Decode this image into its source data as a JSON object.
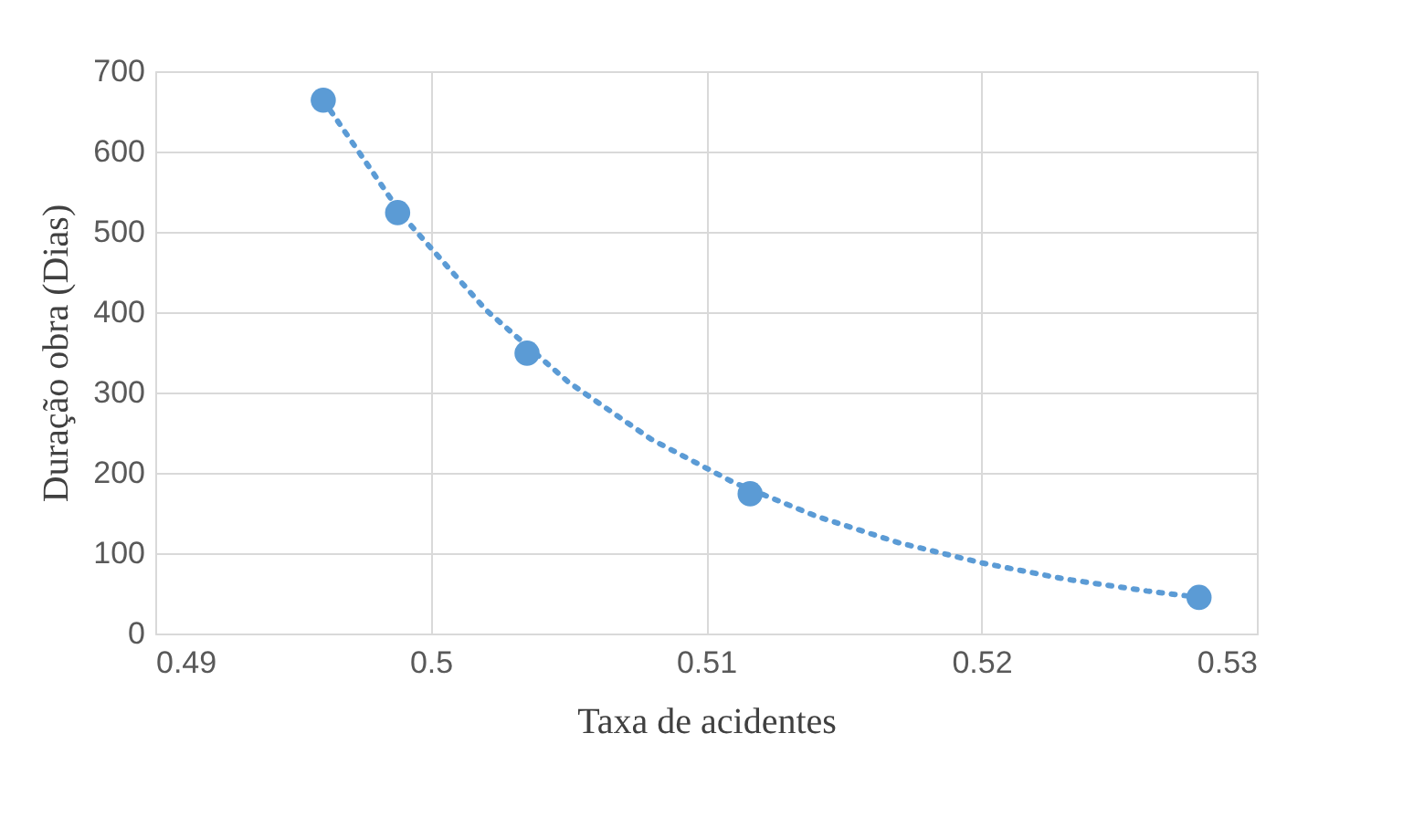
{
  "chart_data": {
    "type": "scatter",
    "xlabel": "Taxa de acidentes",
    "ylabel": "Duração obra (Dias)",
    "xlim": [
      0.49,
      0.53
    ],
    "xticks": [
      0.49,
      0.5,
      0.51,
      0.52,
      0.53
    ],
    "ylim": [
      0,
      700
    ],
    "yticks": [
      0,
      100,
      200,
      300,
      400,
      500,
      600,
      700
    ],
    "grid": true,
    "marker": "circle",
    "series": [
      {
        "color": "#5b9bd5",
        "x": [
          0.4961,
          0.4988,
          0.5035,
          0.5116,
          0.5279
        ],
        "values": [
          664,
          524,
          349,
          174,
          45
        ]
      },
      {
        "type": "line",
        "color": "#5b9bd5",
        "line_style": "dotted",
        "marker": "none",
        "x": [
          0.4961,
          0.499,
          0.502,
          0.505,
          0.508,
          0.511,
          0.514,
          0.517,
          0.52,
          0.523,
          0.526,
          0.5279
        ],
        "values": [
          664,
          519,
          403,
          313,
          242,
          188,
          146,
          113,
          88,
          68,
          53,
          45
        ]
      }
    ]
  }
}
